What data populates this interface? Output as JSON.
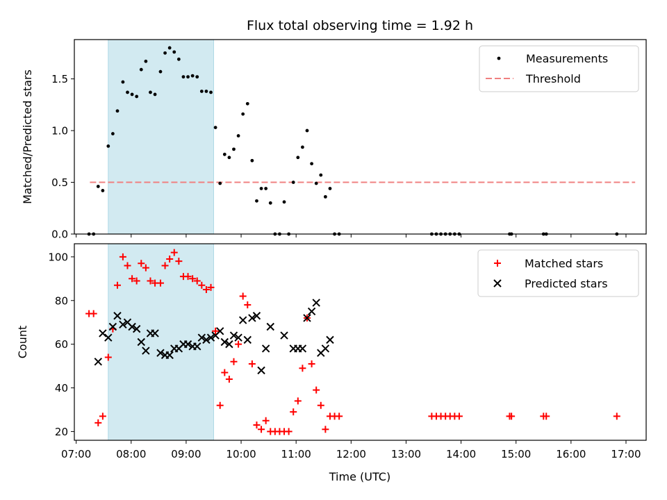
{
  "title": "Flux total observing time = 1.92 h",
  "xlabel": "Time (UTC)",
  "x_ticks": [
    "07:00",
    "08:00",
    "09:00",
    "10:00",
    "11:00",
    "12:00",
    "13:00",
    "14:00",
    "15:00",
    "16:00",
    "17:00"
  ],
  "colors": {
    "measurement": "#000000",
    "threshold": "#f08080",
    "shade": "#add8e6",
    "matched": "#ff0000",
    "predicted": "#000000"
  },
  "chart_data": [
    {
      "type": "scatter",
      "ylabel": "Matched/Predicted stars",
      "xlim": [
        "06:58",
        "17:22"
      ],
      "ylim": [
        0,
        1.88
      ],
      "y_ticks": [
        "0.0",
        "0.5",
        "1.0",
        "1.5"
      ],
      "legend_position": "top-right",
      "shaded_interval": [
        "07:35",
        "09:30"
      ],
      "threshold": {
        "name": "Threshold",
        "y": 0.5,
        "x_range": [
          "07:15",
          "17:10"
        ]
      },
      "series": [
        {
          "name": "Measurements",
          "points": [
            [
              "07:14",
              0.0
            ],
            [
              "07:19",
              0.0
            ],
            [
              "07:24",
              0.46
            ],
            [
              "07:29",
              0.42
            ],
            [
              "07:35",
              0.85
            ],
            [
              "07:40",
              0.97
            ],
            [
              "07:45",
              1.19
            ],
            [
              "07:51",
              1.47
            ],
            [
              "07:56",
              1.37
            ],
            [
              "08:01",
              1.35
            ],
            [
              "08:06",
              1.33
            ],
            [
              "08:11",
              1.59
            ],
            [
              "08:16",
              1.67
            ],
            [
              "08:21",
              1.37
            ],
            [
              "08:26",
              1.35
            ],
            [
              "08:32",
              1.57
            ],
            [
              "08:37",
              1.75
            ],
            [
              "08:42",
              1.8
            ],
            [
              "08:47",
              1.76
            ],
            [
              "08:52",
              1.69
            ],
            [
              "08:57",
              1.52
            ],
            [
              "09:02",
              1.52
            ],
            [
              "09:07",
              1.53
            ],
            [
              "09:12",
              1.52
            ],
            [
              "09:17",
              1.38
            ],
            [
              "09:22",
              1.38
            ],
            [
              "09:27",
              1.37
            ],
            [
              "09:32",
              1.03
            ],
            [
              "09:37",
              0.49
            ],
            [
              "09:42",
              0.77
            ],
            [
              "09:47",
              0.74
            ],
            [
              "09:52",
              0.82
            ],
            [
              "09:57",
              0.95
            ],
            [
              "10:02",
              1.16
            ],
            [
              "10:07",
              1.26
            ],
            [
              "10:12",
              0.71
            ],
            [
              "10:17",
              0.32
            ],
            [
              "10:22",
              0.44
            ],
            [
              "10:27",
              0.44
            ],
            [
              "10:32",
              0.3
            ],
            [
              "10:37",
              0.0
            ],
            [
              "10:42",
              0.0
            ],
            [
              "10:47",
              0.31
            ],
            [
              "10:52",
              0.0
            ],
            [
              "10:57",
              0.5
            ],
            [
              "11:02",
              0.74
            ],
            [
              "11:07",
              0.84
            ],
            [
              "11:12",
              1.0
            ],
            [
              "11:17",
              0.68
            ],
            [
              "11:22",
              0.49
            ],
            [
              "11:27",
              0.57
            ],
            [
              "11:32",
              0.36
            ],
            [
              "11:37",
              0.44
            ],
            [
              "11:42",
              0.0
            ],
            [
              "11:47",
              0.0
            ],
            [
              "13:28",
              0.0
            ],
            [
              "13:33",
              0.0
            ],
            [
              "13:38",
              0.0
            ],
            [
              "13:43",
              0.0
            ],
            [
              "13:48",
              0.0
            ],
            [
              "13:53",
              0.0
            ],
            [
              "13:58",
              0.0
            ],
            [
              "14:53",
              0.0
            ],
            [
              "14:55",
              0.0
            ],
            [
              "15:30",
              0.0
            ],
            [
              "15:33",
              0.0
            ],
            [
              "16:50",
              0.0
            ]
          ]
        }
      ]
    },
    {
      "type": "scatter",
      "ylabel": "Count",
      "xlim": [
        "06:58",
        "17:22"
      ],
      "ylim": [
        16,
        106
      ],
      "y_ticks": [
        "20",
        "40",
        "60",
        "80",
        "100"
      ],
      "legend_position": "top-right",
      "shaded_interval": [
        "07:35",
        "09:30"
      ],
      "series": [
        {
          "name": "Matched stars",
          "marker": "plus",
          "points": [
            [
              "07:14",
              74
            ],
            [
              "07:19",
              74
            ],
            [
              "07:24",
              24
            ],
            [
              "07:29",
              27
            ],
            [
              "07:35",
              54
            ],
            [
              "07:40",
              67
            ],
            [
              "07:45",
              87
            ],
            [
              "07:51",
              100
            ],
            [
              "07:56",
              96
            ],
            [
              "08:01",
              90
            ],
            [
              "08:06",
              89
            ],
            [
              "08:11",
              97
            ],
            [
              "08:16",
              95
            ],
            [
              "08:21",
              89
            ],
            [
              "08:26",
              88
            ],
            [
              "08:32",
              88
            ],
            [
              "08:37",
              96
            ],
            [
              "08:42",
              99
            ],
            [
              "08:47",
              102
            ],
            [
              "08:52",
              98
            ],
            [
              "08:57",
              91
            ],
            [
              "09:02",
              91
            ],
            [
              "09:07",
              90
            ],
            [
              "09:12",
              89
            ],
            [
              "09:17",
              87
            ],
            [
              "09:22",
              85
            ],
            [
              "09:27",
              86
            ],
            [
              "09:32",
              66
            ],
            [
              "09:37",
              32
            ],
            [
              "09:42",
              47
            ],
            [
              "09:47",
              44
            ],
            [
              "09:52",
              52
            ],
            [
              "09:57",
              60
            ],
            [
              "10:02",
              82
            ],
            [
              "10:07",
              78
            ],
            [
              "10:12",
              51
            ],
            [
              "10:17",
              23
            ],
            [
              "10:22",
              21
            ],
            [
              "10:27",
              25
            ],
            [
              "10:32",
              20
            ],
            [
              "10:37",
              20
            ],
            [
              "10:42",
              20
            ],
            [
              "10:47",
              20
            ],
            [
              "10:52",
              20
            ],
            [
              "10:57",
              29
            ],
            [
              "11:02",
              34
            ],
            [
              "11:07",
              49
            ],
            [
              "11:12",
              72
            ],
            [
              "11:17",
              51
            ],
            [
              "11:22",
              39
            ],
            [
              "11:27",
              32
            ],
            [
              "11:32",
              21
            ],
            [
              "11:37",
              27
            ],
            [
              "11:42",
              27
            ],
            [
              "11:47",
              27
            ],
            [
              "13:28",
              27
            ],
            [
              "13:33",
              27
            ],
            [
              "13:38",
              27
            ],
            [
              "13:43",
              27
            ],
            [
              "13:48",
              27
            ],
            [
              "13:53",
              27
            ],
            [
              "13:58",
              27
            ],
            [
              "14:53",
              27
            ],
            [
              "14:55",
              27
            ],
            [
              "15:30",
              27
            ],
            [
              "15:33",
              27
            ],
            [
              "16:50",
              27
            ]
          ]
        },
        {
          "name": "Predicted stars",
          "marker": "x",
          "points": [
            [
              "07:24",
              52
            ],
            [
              "07:29",
              65
            ],
            [
              "07:35",
              63
            ],
            [
              "07:40",
              68
            ],
            [
              "07:45",
              73
            ],
            [
              "07:51",
              69
            ],
            [
              "07:56",
              70
            ],
            [
              "08:01",
              68
            ],
            [
              "08:06",
              67
            ],
            [
              "08:11",
              61
            ],
            [
              "08:16",
              57
            ],
            [
              "08:21",
              65
            ],
            [
              "08:26",
              65
            ],
            [
              "08:32",
              56
            ],
            [
              "08:37",
              55
            ],
            [
              "08:42",
              55
            ],
            [
              "08:47",
              58
            ],
            [
              "08:52",
              58
            ],
            [
              "08:57",
              60
            ],
            [
              "09:02",
              60
            ],
            [
              "09:07",
              59
            ],
            [
              "09:12",
              59
            ],
            [
              "09:17",
              63
            ],
            [
              "09:22",
              62
            ],
            [
              "09:27",
              63
            ],
            [
              "09:32",
              64
            ],
            [
              "09:37",
              66
            ],
            [
              "09:42",
              61
            ],
            [
              "09:47",
              60
            ],
            [
              "09:52",
              64
            ],
            [
              "09:57",
              63
            ],
            [
              "10:02",
              71
            ],
            [
              "10:07",
              62
            ],
            [
              "10:12",
              72
            ],
            [
              "10:17",
              73
            ],
            [
              "10:22",
              48
            ],
            [
              "10:27",
              58
            ],
            [
              "10:32",
              68
            ],
            [
              "10:47",
              64
            ],
            [
              "10:57",
              58
            ],
            [
              "11:02",
              58
            ],
            [
              "11:07",
              58
            ],
            [
              "11:12",
              72
            ],
            [
              "11:17",
              75
            ],
            [
              "11:22",
              79
            ],
            [
              "11:27",
              56
            ],
            [
              "11:32",
              58
            ],
            [
              "11:37",
              62
            ]
          ]
        }
      ]
    }
  ]
}
